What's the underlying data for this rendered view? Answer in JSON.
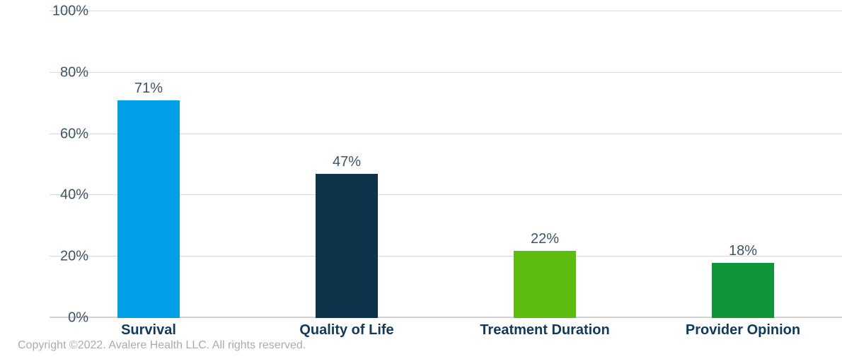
{
  "chart_data": {
    "type": "bar",
    "categories": [
      "Survival",
      "Quality of Life",
      "Treatment Duration",
      "Provider Opinion"
    ],
    "values": [
      71,
      47,
      22,
      18
    ],
    "value_labels": [
      "71%",
      "47%",
      "22%",
      "18%"
    ],
    "bar_colors": [
      "#00a0e9",
      "#0d344a",
      "#5cbd0e",
      "#0e9639"
    ],
    "title": "",
    "xlabel": "",
    "ylabel": "",
    "ylim": [
      0,
      100
    ],
    "yticks": [
      0,
      20,
      40,
      60,
      80,
      100
    ],
    "ytick_labels": [
      "0%",
      "20%",
      "40%",
      "60%",
      "80%",
      "100%"
    ],
    "grid": true,
    "legend": "none"
  },
  "colors": {
    "tick_label": "#3e5363",
    "category_label": "#0f3a5c",
    "gridline": "#d9d9d9",
    "baseline": "#d2d2d2",
    "background": "#ffffff"
  },
  "footer": {
    "copyright": "Copyright ©2022. Avalere Health LLC. All rights reserved."
  }
}
